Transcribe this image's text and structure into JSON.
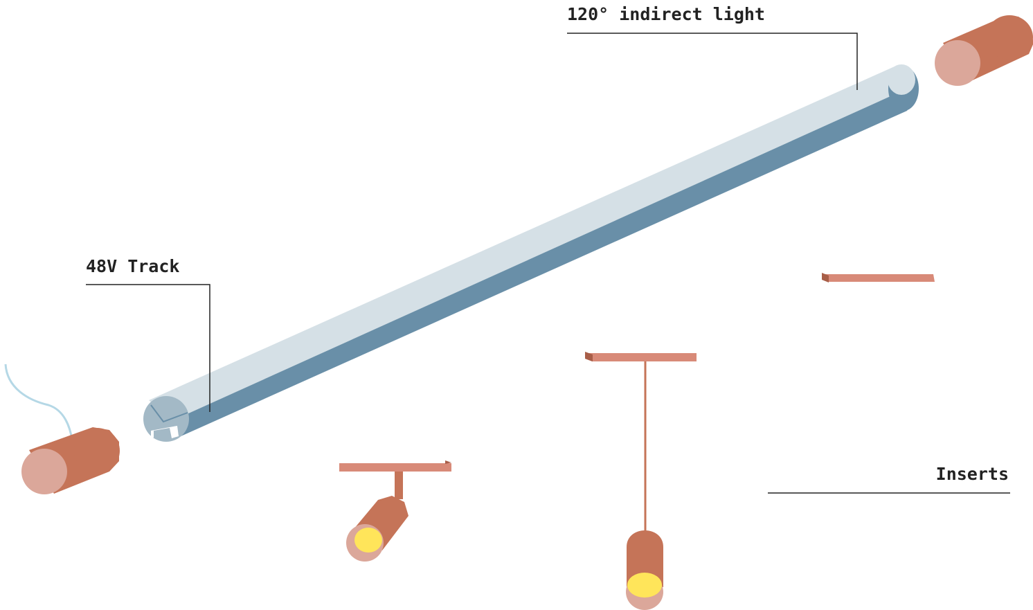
{
  "labels": {
    "indirect_light": "120° indirect light",
    "track": "48V Track",
    "inserts": "Inserts"
  },
  "colors": {
    "track_top": "#d5e0e6",
    "track_side": "#698fa8",
    "track_end": "#a3b9c6",
    "copper": "#c57458",
    "copper_light": "#d88a78",
    "cap_face": "#dba79a",
    "cable": "#b5d8e6",
    "lens": "#ffe55a",
    "leader": "#222222"
  }
}
